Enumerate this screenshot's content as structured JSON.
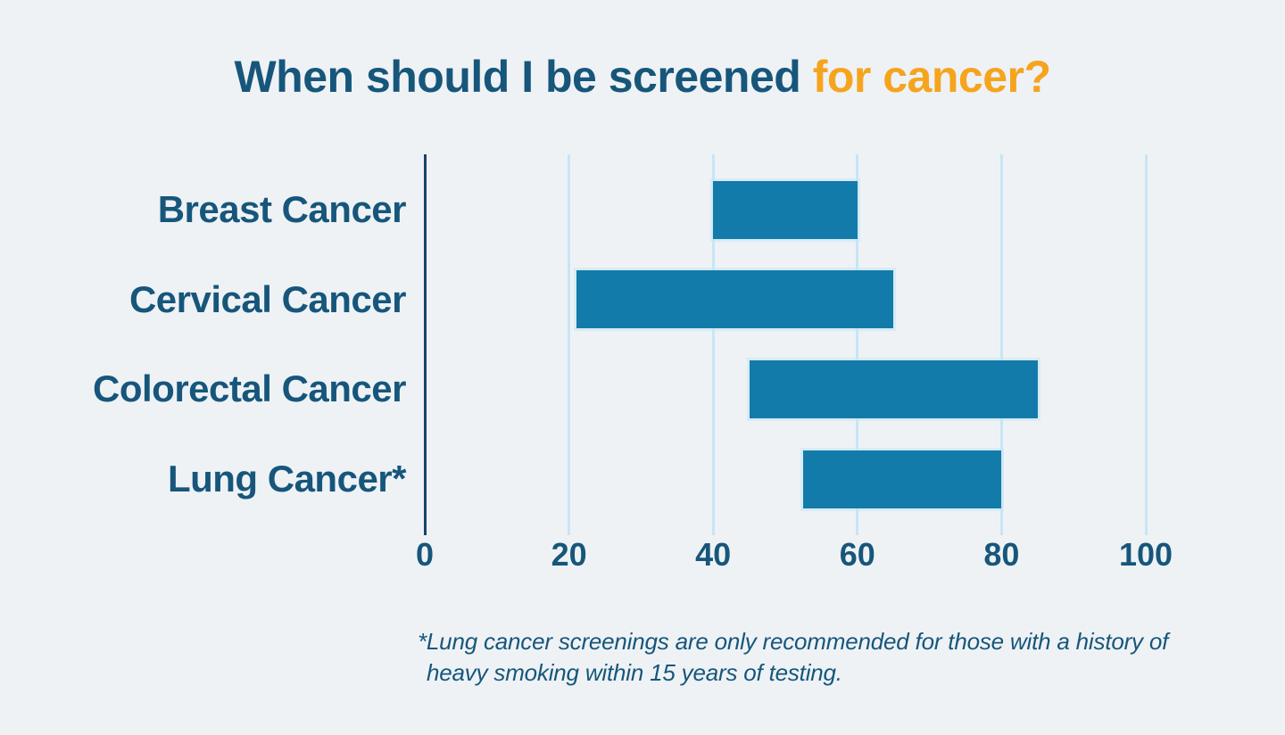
{
  "page": {
    "background_color": "#eef2f5"
  },
  "title": {
    "main": "When should I be screened ",
    "highlight": "for cancer?",
    "main_color": "#17567b",
    "highlight_color": "#f6a41e"
  },
  "chart_data": {
    "type": "bar",
    "subtype": "range",
    "orientation": "horizontal",
    "title": "When should I be screened for cancer?",
    "categories": [
      "Breast Cancer",
      "Cervical Cancer",
      "Colorectal Cancer",
      "Lung Cancer*"
    ],
    "ranges": [
      {
        "category": "Breast Cancer",
        "start": 40,
        "end": 60
      },
      {
        "category": "Cervical Cancer",
        "start": 21,
        "end": 65
      },
      {
        "category": "Colorectal Cancer",
        "start": 45,
        "end": 85
      },
      {
        "category": "Lung Cancer*",
        "start": 52.5,
        "end": 80
      }
    ],
    "x_ticks": [
      0,
      20,
      40,
      60,
      80,
      100
    ],
    "xlim": [
      0,
      100
    ],
    "grid": true,
    "legend_position": "none",
    "bar_color": "#137ba9",
    "gridline_color": "#c7e6f7",
    "axis_line_color": "#16456a",
    "label_color": "#17567b"
  },
  "footnote": {
    "lines": [
      "*Lung cancer screenings are only recommended for those with a history of",
      "heavy smoking within 15 years of testing."
    ]
  }
}
